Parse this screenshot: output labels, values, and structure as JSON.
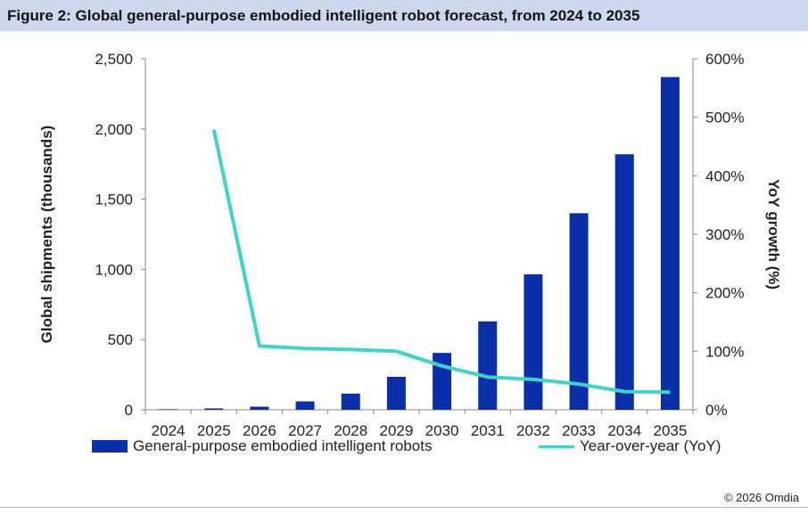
{
  "header": {
    "title": "Figure 2: Global general-purpose embodied intelligent robot forecast, from 2024 to 2035"
  },
  "colors": {
    "bar": "#0a2fa8",
    "line": "#3dd6c6",
    "title_bg": "#cdd8ee",
    "axis": "#888888"
  },
  "chart_data": {
    "type": "bar",
    "categories": [
      "2024",
      "2025",
      "2026",
      "2027",
      "2028",
      "2029",
      "2030",
      "2031",
      "2032",
      "2033",
      "2034",
      "2035"
    ],
    "series": [
      {
        "name": "General-purpose embodied intelligent robots",
        "type": "bar",
        "axis": "left",
        "values": [
          4,
          10,
          22,
          60,
          115,
          235,
          405,
          630,
          965,
          1400,
          1820,
          2370
        ]
      },
      {
        "name": "Year-over-year (YoY)",
        "type": "line",
        "axis": "right",
        "values": [
          null,
          479,
          109,
          105,
          103,
          100,
          75,
          56,
          52,
          44,
          31,
          30
        ]
      }
    ],
    "ylabel": "Global shipments (thousands)",
    "y2label": "YoY growth (%)",
    "ylim": [
      0,
      2500
    ],
    "y2lim": [
      0,
      600
    ],
    "yticks": [
      "0",
      "500",
      "1,000",
      "1,500",
      "2,000",
      "2,500"
    ],
    "y2ticks": [
      "0%",
      "100%",
      "200%",
      "300%",
      "400%",
      "500%",
      "600%"
    ],
    "grid": false,
    "legend_position": "bottom"
  },
  "footer": {
    "copyright": "© 2026 Omdia"
  }
}
